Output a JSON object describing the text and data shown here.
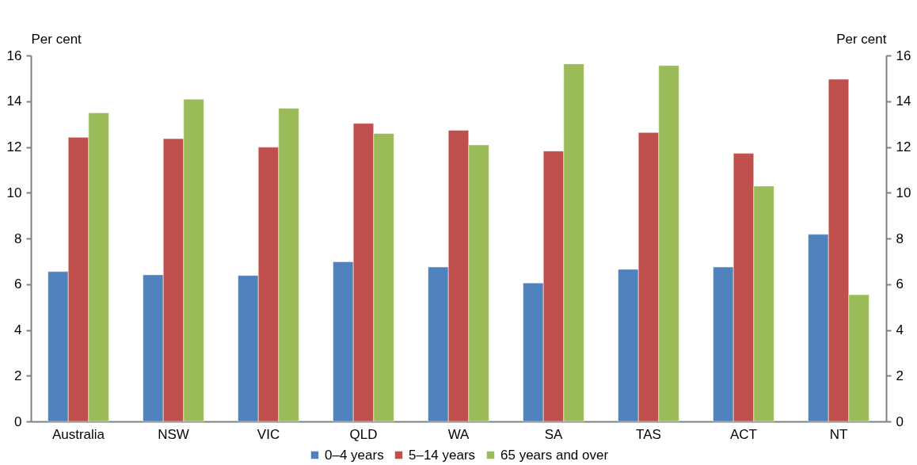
{
  "chart_data": {
    "type": "bar",
    "ylabel": "Per cent",
    "y2label": "Per cent",
    "categories": [
      "Australia",
      "NSW",
      "VIC",
      "QLD",
      "WA",
      "SA",
      "TAS",
      "ACT",
      "NT"
    ],
    "series": [
      {
        "name": "0–4 years",
        "color": "#4f81bd",
        "values": [
          6.55,
          6.41,
          6.38,
          6.98,
          6.75,
          6.05,
          6.65,
          6.75,
          8.18
        ]
      },
      {
        "name": "5–14 years",
        "color": "#c0504d",
        "values": [
          12.42,
          12.36,
          11.99,
          13.03,
          12.73,
          11.82,
          12.63,
          11.72,
          14.96
        ]
      },
      {
        "name": "65 years and over",
        "color": "#9bbb59",
        "values": [
          13.49,
          14.09,
          13.69,
          12.59,
          12.09,
          15.63,
          15.56,
          10.29,
          5.54
        ]
      }
    ],
    "ylim": [
      0,
      16
    ],
    "yticks": [
      0,
      2,
      4,
      6,
      8,
      10,
      12,
      14,
      16
    ],
    "y2lim": [
      0,
      16
    ],
    "y2ticks": [
      0,
      2,
      4,
      6,
      8,
      10,
      12,
      14,
      16
    ],
    "grid": false,
    "legend": "bottom"
  }
}
